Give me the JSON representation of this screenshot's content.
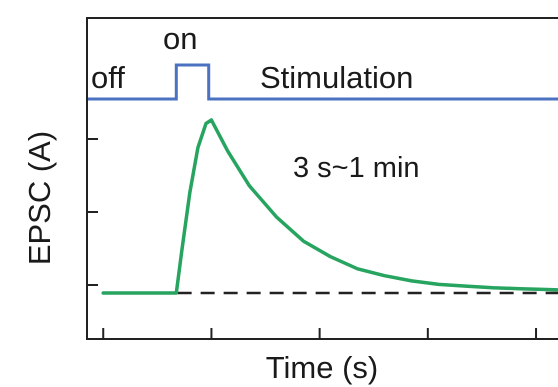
{
  "chart_data": {
    "type": "line",
    "title": "",
    "xlabel": "Time (s)",
    "ylabel": "EPSC (A)",
    "grid": false,
    "colors": {
      "epsc": "#27a45f",
      "stimulation": "#4a72c0",
      "baseline": "#222222",
      "axis": "#222222"
    },
    "stimulation": {
      "label": "Stimulation",
      "off_label": "off",
      "on_label": "on",
      "t": [
        0,
        1.65,
        1.65,
        2.25,
        2.25,
        10
      ],
      "state": [
        0,
        0,
        1,
        1,
        0,
        0
      ]
    },
    "epsc": {
      "x": [
        0.3,
        1.65,
        1.75,
        1.9,
        2.05,
        2.2,
        2.3,
        2.6,
        3.0,
        3.5,
        4.0,
        4.5,
        5.0,
        5.5,
        6.0,
        6.5,
        7.0,
        7.5,
        8.0,
        8.5,
        9.0,
        9.7
      ],
      "y": [
        0,
        0,
        0.24,
        0.58,
        0.84,
        0.98,
        1.0,
        0.82,
        0.62,
        0.44,
        0.3,
        0.21,
        0.14,
        0.1,
        0.07,
        0.05,
        0.04,
        0.03,
        0.025,
        0.02,
        0.015,
        0.012
      ]
    },
    "baseline": {
      "y": 0
    },
    "annotation": "3 s~1 min",
    "xlim": [
      0,
      10
    ],
    "ylim": [
      -0.3,
      1.25
    ]
  }
}
